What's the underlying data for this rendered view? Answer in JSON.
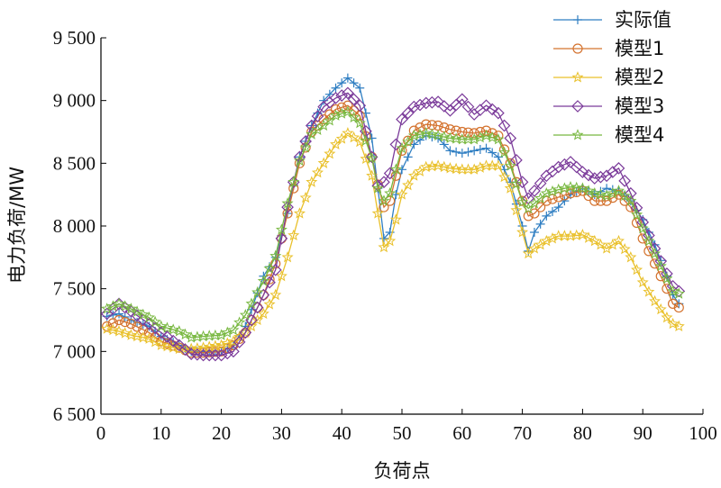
{
  "chart_data": {
    "type": "line",
    "title": "",
    "xlabel": "负荷点",
    "ylabel": "电力负荷/MW",
    "xlim": [
      0,
      100
    ],
    "ylim": [
      6500,
      9500
    ],
    "xticks": [
      {
        "value": 0,
        "label": "0"
      },
      {
        "value": 10,
        "label": "10"
      },
      {
        "value": 20,
        "label": "20"
      },
      {
        "value": 30,
        "label": "30"
      },
      {
        "value": 40,
        "label": "40"
      },
      {
        "value": 50,
        "label": "50"
      },
      {
        "value": 60,
        "label": "60"
      },
      {
        "value": 70,
        "label": "70"
      },
      {
        "value": 80,
        "label": "80"
      },
      {
        "value": 90,
        "label": "90"
      },
      {
        "value": 100,
        "label": "100"
      }
    ],
    "yticks": [
      {
        "value": 6500,
        "label": "6 500"
      },
      {
        "value": 7000,
        "label": "7 000"
      },
      {
        "value": 7500,
        "label": "7 500"
      },
      {
        "value": 8000,
        "label": "8 000"
      },
      {
        "value": 8500,
        "label": "8 500"
      },
      {
        "value": 9000,
        "label": "9 000"
      },
      {
        "value": 9500,
        "label": "9 500"
      }
    ],
    "legend_position": "top-right",
    "series": [
      {
        "name": "实际值",
        "color": "#2f7ec2",
        "marker": "plus",
        "anchors": [
          [
            1,
            7280
          ],
          [
            3,
            7300
          ],
          [
            5,
            7250
          ],
          [
            8,
            7200
          ],
          [
            10,
            7120
          ],
          [
            13,
            7050
          ],
          [
            15,
            7000
          ],
          [
            17,
            7000
          ],
          [
            20,
            7000
          ],
          [
            22,
            7050
          ],
          [
            24,
            7200
          ],
          [
            27,
            7600
          ],
          [
            29,
            7750
          ],
          [
            31,
            8100
          ],
          [
            33,
            8550
          ],
          [
            35,
            8800
          ],
          [
            37,
            9000
          ],
          [
            39,
            9100
          ],
          [
            41,
            9180
          ],
          [
            43,
            9100
          ],
          [
            45,
            8700
          ],
          [
            46,
            8300
          ],
          [
            47,
            7900
          ],
          [
            48,
            7950
          ],
          [
            49,
            8250
          ],
          [
            50,
            8450
          ],
          [
            52,
            8650
          ],
          [
            54,
            8720
          ],
          [
            56,
            8700
          ],
          [
            58,
            8600
          ],
          [
            60,
            8580
          ],
          [
            62,
            8600
          ],
          [
            64,
            8620
          ],
          [
            66,
            8550
          ],
          [
            68,
            8350
          ],
          [
            70,
            8000
          ],
          [
            71,
            7800
          ],
          [
            72,
            7950
          ],
          [
            74,
            8080
          ],
          [
            76,
            8150
          ],
          [
            78,
            8250
          ],
          [
            80,
            8300
          ],
          [
            82,
            8250
          ],
          [
            84,
            8300
          ],
          [
            86,
            8280
          ],
          [
            88,
            8200
          ],
          [
            90,
            8050
          ],
          [
            92,
            7850
          ],
          [
            94,
            7600
          ],
          [
            95,
            7450
          ],
          [
            96,
            7380
          ]
        ]
      },
      {
        "name": "模型1",
        "color": "#d4732f",
        "marker": "circle",
        "anchors": [
          [
            1,
            7200
          ],
          [
            3,
            7250
          ],
          [
            5,
            7220
          ],
          [
            8,
            7150
          ],
          [
            10,
            7080
          ],
          [
            13,
            7030
          ],
          [
            15,
            6990
          ],
          [
            17,
            6990
          ],
          [
            20,
            7000
          ],
          [
            22,
            7050
          ],
          [
            24,
            7150
          ],
          [
            27,
            7450
          ],
          [
            29,
            7700
          ],
          [
            31,
            8100
          ],
          [
            33,
            8500
          ],
          [
            35,
            8750
          ],
          [
            37,
            8850
          ],
          [
            39,
            8930
          ],
          [
            41,
            8960
          ],
          [
            43,
            8880
          ],
          [
            45,
            8550
          ],
          [
            46,
            8330
          ],
          [
            47,
            8150
          ],
          [
            48,
            8200
          ],
          [
            49,
            8400
          ],
          [
            50,
            8600
          ],
          [
            52,
            8760
          ],
          [
            54,
            8810
          ],
          [
            56,
            8800
          ],
          [
            58,
            8770
          ],
          [
            60,
            8750
          ],
          [
            62,
            8740
          ],
          [
            64,
            8760
          ],
          [
            66,
            8720
          ],
          [
            68,
            8500
          ],
          [
            70,
            8200
          ],
          [
            71,
            8080
          ],
          [
            72,
            8100
          ],
          [
            74,
            8200
          ],
          [
            76,
            8230
          ],
          [
            78,
            8260
          ],
          [
            80,
            8280
          ],
          [
            82,
            8200
          ],
          [
            84,
            8200
          ],
          [
            86,
            8250
          ],
          [
            88,
            8150
          ],
          [
            90,
            7900
          ],
          [
            92,
            7700
          ],
          [
            94,
            7500
          ],
          [
            95,
            7380
          ],
          [
            96,
            7350
          ]
        ]
      },
      {
        "name": "模型2",
        "color": "#e9c02a",
        "marker": "star",
        "anchors": [
          [
            1,
            7180
          ],
          [
            3,
            7160
          ],
          [
            5,
            7130
          ],
          [
            8,
            7100
          ],
          [
            10,
            7050
          ],
          [
            13,
            7020
          ],
          [
            15,
            7020
          ],
          [
            17,
            7030
          ],
          [
            20,
            7050
          ],
          [
            22,
            7080
          ],
          [
            24,
            7150
          ],
          [
            27,
            7300
          ],
          [
            29,
            7450
          ],
          [
            31,
            7750
          ],
          [
            33,
            8100
          ],
          [
            35,
            8350
          ],
          [
            37,
            8500
          ],
          [
            39,
            8650
          ],
          [
            41,
            8740
          ],
          [
            43,
            8670
          ],
          [
            45,
            8400
          ],
          [
            46,
            8100
          ],
          [
            47,
            7830
          ],
          [
            48,
            7880
          ],
          [
            49,
            8050
          ],
          [
            50,
            8250
          ],
          [
            52,
            8400
          ],
          [
            54,
            8470
          ],
          [
            56,
            8480
          ],
          [
            58,
            8460
          ],
          [
            60,
            8450
          ],
          [
            62,
            8450
          ],
          [
            64,
            8480
          ],
          [
            66,
            8480
          ],
          [
            68,
            8300
          ],
          [
            70,
            7950
          ],
          [
            71,
            7780
          ],
          [
            72,
            7820
          ],
          [
            74,
            7880
          ],
          [
            76,
            7920
          ],
          [
            78,
            7920
          ],
          [
            80,
            7930
          ],
          [
            82,
            7880
          ],
          [
            84,
            7820
          ],
          [
            86,
            7880
          ],
          [
            88,
            7750
          ],
          [
            90,
            7550
          ],
          [
            92,
            7400
          ],
          [
            94,
            7270
          ],
          [
            95,
            7220
          ],
          [
            96,
            7200
          ]
        ]
      },
      {
        "name": "模型3",
        "color": "#7b3b9a",
        "marker": "diamond",
        "anchors": [
          [
            1,
            7300
          ],
          [
            3,
            7380
          ],
          [
            5,
            7320
          ],
          [
            8,
            7220
          ],
          [
            10,
            7150
          ],
          [
            13,
            7050
          ],
          [
            15,
            6980
          ],
          [
            17,
            6970
          ],
          [
            20,
            6970
          ],
          [
            22,
            7000
          ],
          [
            24,
            7150
          ],
          [
            27,
            7450
          ],
          [
            29,
            7650
          ],
          [
            31,
            8150
          ],
          [
            33,
            8550
          ],
          [
            35,
            8800
          ],
          [
            37,
            8950
          ],
          [
            39,
            9020
          ],
          [
            41,
            9060
          ],
          [
            43,
            8960
          ],
          [
            45,
            8550
          ],
          [
            46,
            8320
          ],
          [
            47,
            8350
          ],
          [
            48,
            8420
          ],
          [
            49,
            8650
          ],
          [
            50,
            8850
          ],
          [
            52,
            8950
          ],
          [
            54,
            8980
          ],
          [
            56,
            8990
          ],
          [
            58,
            8920
          ],
          [
            60,
            9010
          ],
          [
            62,
            8890
          ],
          [
            64,
            8960
          ],
          [
            66,
            8900
          ],
          [
            68,
            8700
          ],
          [
            70,
            8350
          ],
          [
            71,
            8220
          ],
          [
            72,
            8280
          ],
          [
            74,
            8400
          ],
          [
            76,
            8470
          ],
          [
            78,
            8510
          ],
          [
            80,
            8430
          ],
          [
            82,
            8380
          ],
          [
            84,
            8400
          ],
          [
            86,
            8460
          ],
          [
            88,
            8260
          ],
          [
            90,
            8030
          ],
          [
            92,
            7820
          ],
          [
            94,
            7620
          ],
          [
            95,
            7520
          ],
          [
            96,
            7480
          ]
        ]
      },
      {
        "name": "模型4",
        "color": "#78b840",
        "marker": "star",
        "anchors": [
          [
            1,
            7340
          ],
          [
            3,
            7380
          ],
          [
            5,
            7340
          ],
          [
            8,
            7270
          ],
          [
            10,
            7200
          ],
          [
            13,
            7160
          ],
          [
            15,
            7110
          ],
          [
            17,
            7120
          ],
          [
            20,
            7130
          ],
          [
            22,
            7170
          ],
          [
            24,
            7290
          ],
          [
            27,
            7560
          ],
          [
            29,
            7760
          ],
          [
            31,
            8180
          ],
          [
            33,
            8520
          ],
          [
            35,
            8730
          ],
          [
            37,
            8800
          ],
          [
            39,
            8880
          ],
          [
            41,
            8910
          ],
          [
            43,
            8820
          ],
          [
            45,
            8540
          ],
          [
            46,
            8300
          ],
          [
            47,
            8200
          ],
          [
            48,
            8260
          ],
          [
            49,
            8450
          ],
          [
            50,
            8620
          ],
          [
            52,
            8720
          ],
          [
            54,
            8740
          ],
          [
            56,
            8720
          ],
          [
            58,
            8700
          ],
          [
            60,
            8690
          ],
          [
            62,
            8690
          ],
          [
            64,
            8720
          ],
          [
            66,
            8690
          ],
          [
            68,
            8480
          ],
          [
            70,
            8190
          ],
          [
            71,
            8140
          ],
          [
            72,
            8180
          ],
          [
            74,
            8260
          ],
          [
            76,
            8290
          ],
          [
            78,
            8310
          ],
          [
            80,
            8300
          ],
          [
            82,
            8260
          ],
          [
            84,
            8240
          ],
          [
            86,
            8280
          ],
          [
            88,
            8200
          ],
          [
            90,
            7980
          ],
          [
            92,
            7780
          ],
          [
            94,
            7580
          ],
          [
            95,
            7480
          ],
          [
            96,
            7460
          ]
        ]
      }
    ]
  }
}
